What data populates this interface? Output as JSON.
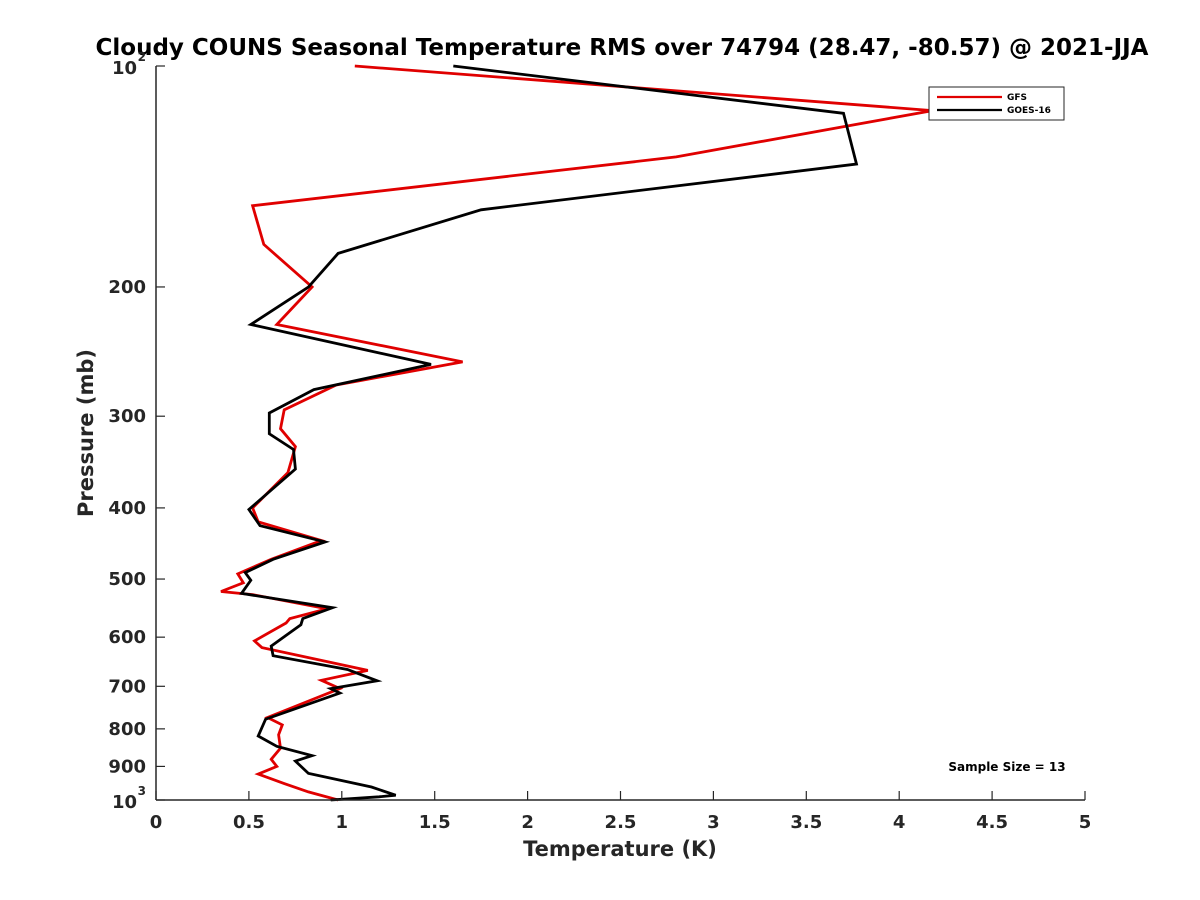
{
  "chart_data": {
    "type": "line",
    "title": "Cloudy COUNS Seasonal Temperature RMS over 74794 (28.47, -80.57) @ 2021-JJA",
    "xlabel": "Temperature (K)",
    "ylabel": "Pressure (mb)",
    "xlim": [
      0,
      5
    ],
    "ylim": [
      1000,
      100
    ],
    "y_scale": "log",
    "y_reversed": true,
    "grid": false,
    "legend_position": "top-right",
    "x_ticks": [
      "0",
      "0.5",
      "1",
      "1.5",
      "2",
      "2.5",
      "3",
      "3.5",
      "4",
      "4.5",
      "5"
    ],
    "x_tick_values": [
      0,
      0.5,
      1,
      1.5,
      2,
      2.5,
      3,
      3.5,
      4,
      4.5,
      5
    ],
    "y_ticks": [
      {
        "value": 100,
        "label": "10",
        "exp": "2"
      },
      {
        "value": 200,
        "label": "200",
        "exp": ""
      },
      {
        "value": 300,
        "label": "300",
        "exp": ""
      },
      {
        "value": 400,
        "label": "400",
        "exp": ""
      },
      {
        "value": 500,
        "label": "500",
        "exp": ""
      },
      {
        "value": 600,
        "label": "600",
        "exp": ""
      },
      {
        "value": 700,
        "label": "700",
        "exp": ""
      },
      {
        "value": 800,
        "label": "800",
        "exp": ""
      },
      {
        "value": 900,
        "label": "900",
        "exp": ""
      },
      {
        "value": 1000,
        "label": "10",
        "exp": "3"
      }
    ],
    "annotation": "Sample Size = 13",
    "series": [
      {
        "name": "GFS",
        "color": "#e00000",
        "points": [
          [
            1.07,
            100
          ],
          [
            4.18,
            115
          ],
          [
            2.8,
            133
          ],
          [
            0.52,
            155
          ],
          [
            0.58,
            175
          ],
          [
            0.84,
            200
          ],
          [
            0.65,
            225
          ],
          [
            1.65,
            253
          ],
          [
            0.97,
            272
          ],
          [
            0.69,
            294
          ],
          [
            0.67,
            312
          ],
          [
            0.75,
            330
          ],
          [
            0.71,
            358
          ],
          [
            0.52,
            400
          ],
          [
            0.55,
            418
          ],
          [
            0.89,
            443
          ],
          [
            0.62,
            470
          ],
          [
            0.44,
            492
          ],
          [
            0.47,
            506
          ],
          [
            0.35,
            520
          ],
          [
            0.52,
            525
          ],
          [
            0.92,
            549
          ],
          [
            0.72,
            566
          ],
          [
            0.7,
            574
          ],
          [
            0.53,
            607
          ],
          [
            0.57,
            620
          ],
          [
            1.14,
            666
          ],
          [
            0.89,
            687
          ],
          [
            0.99,
            705
          ],
          [
            0.6,
            772
          ],
          [
            0.68,
            790
          ],
          [
            0.66,
            815
          ],
          [
            0.67,
            850
          ],
          [
            0.62,
            880
          ],
          [
            0.65,
            900
          ],
          [
            0.55,
            922
          ],
          [
            0.69,
            950
          ],
          [
            0.82,
            975
          ],
          [
            0.98,
            1000
          ]
        ]
      },
      {
        "name": "GOES-16",
        "color": "#000000",
        "points": [
          [
            1.6,
            100
          ],
          [
            3.7,
            116
          ],
          [
            3.77,
            136
          ],
          [
            1.75,
            157
          ],
          [
            0.98,
            180
          ],
          [
            0.82,
            200
          ],
          [
            0.51,
            225
          ],
          [
            1.48,
            255
          ],
          [
            0.85,
            276
          ],
          [
            0.61,
            297
          ],
          [
            0.61,
            317
          ],
          [
            0.74,
            333
          ],
          [
            0.75,
            354
          ],
          [
            0.5,
            402
          ],
          [
            0.56,
            423
          ],
          [
            0.91,
            445
          ],
          [
            0.63,
            470
          ],
          [
            0.48,
            490
          ],
          [
            0.51,
            502
          ],
          [
            0.46,
            523
          ],
          [
            0.95,
            547
          ],
          [
            0.79,
            566
          ],
          [
            0.78,
            577
          ],
          [
            0.62,
            617
          ],
          [
            0.63,
            636
          ],
          [
            1.03,
            664
          ],
          [
            1.19,
            688
          ],
          [
            0.94,
            705
          ],
          [
            0.99,
            715
          ],
          [
            0.59,
            776
          ],
          [
            0.55,
            818
          ],
          [
            0.65,
            845
          ],
          [
            0.84,
            870
          ],
          [
            0.75,
            885
          ],
          [
            0.82,
            920
          ],
          [
            1.16,
            960
          ],
          [
            1.29,
            985
          ],
          [
            1.2,
            990
          ],
          [
            0.94,
            1000
          ]
        ]
      }
    ]
  }
}
